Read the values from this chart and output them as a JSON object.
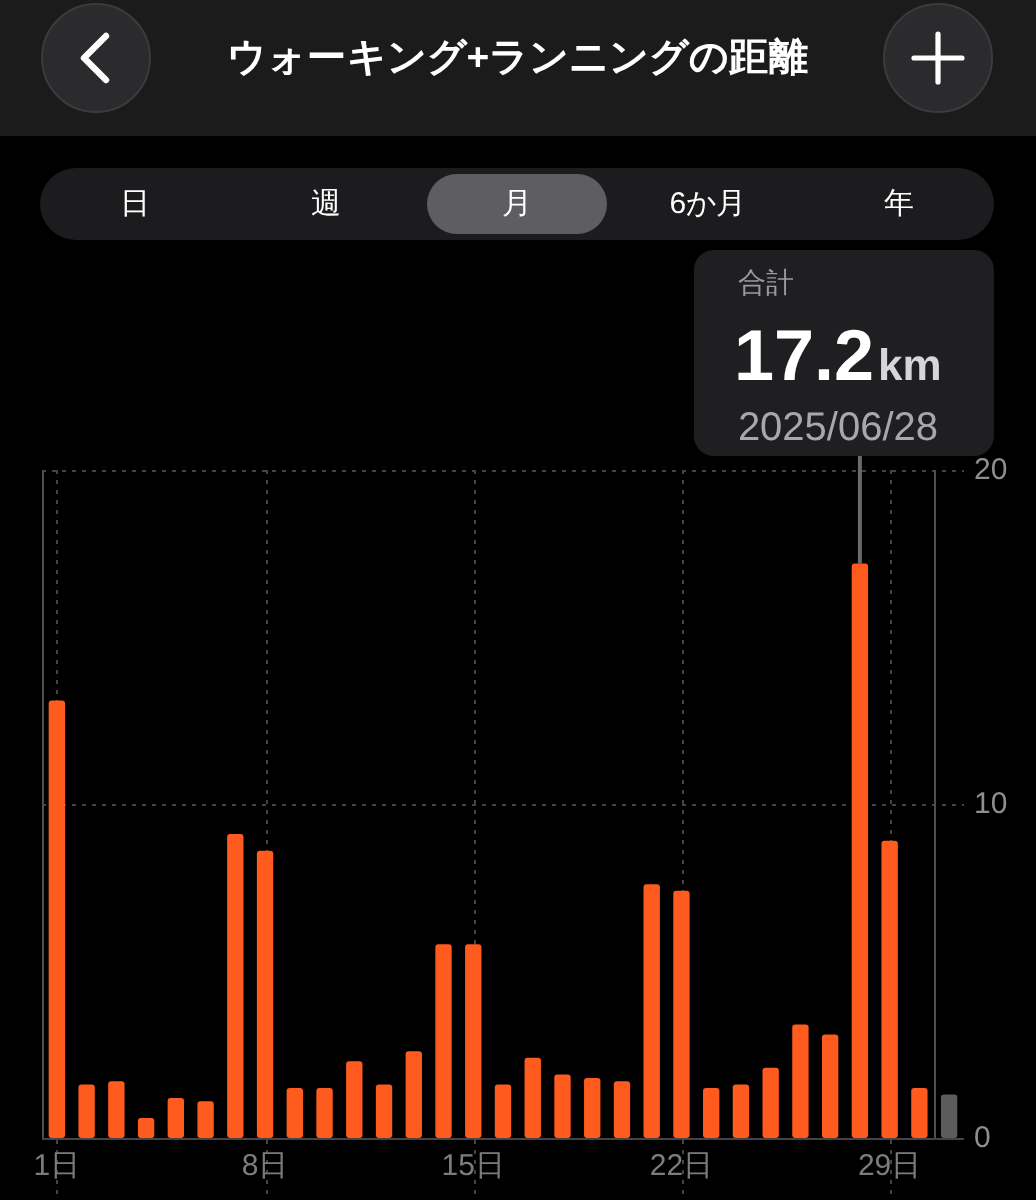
{
  "chart_data": {
    "type": "bar",
    "title": "ウォーキング+ランニングの距離",
    "x": [
      1,
      2,
      3,
      4,
      5,
      6,
      7,
      8,
      9,
      10,
      11,
      12,
      13,
      14,
      15,
      16,
      17,
      18,
      19,
      20,
      21,
      22,
      23,
      24,
      25,
      26,
      27,
      28,
      29,
      30,
      31
    ],
    "values": [
      13.1,
      1.6,
      1.7,
      0.6,
      1.2,
      1.1,
      9.1,
      8.6,
      1.5,
      1.5,
      2.3,
      1.6,
      2.6,
      5.8,
      5.8,
      1.6,
      2.4,
      1.9,
      1.8,
      1.7,
      7.6,
      7.4,
      1.5,
      1.6,
      2.1,
      3.4,
      3.1,
      17.2,
      8.9,
      1.5,
      1.3
    ],
    "colors": [
      "#ff5b1f",
      "#ff5b1f",
      "#ff5b1f",
      "#ff5b1f",
      "#ff5b1f",
      "#ff5b1f",
      "#ff5b1f",
      "#ff5b1f",
      "#ff5b1f",
      "#ff5b1f",
      "#ff5b1f",
      "#ff5b1f",
      "#ff5b1f",
      "#ff5b1f",
      "#ff5b1f",
      "#ff5b1f",
      "#ff5b1f",
      "#ff5b1f",
      "#ff5b1f",
      "#ff5b1f",
      "#ff5b1f",
      "#ff5b1f",
      "#ff5b1f",
      "#ff5b1f",
      "#ff5b1f",
      "#ff5b1f",
      "#ff5b1f",
      "#ff5b1f",
      "#ff5b1f",
      "#ff5b1f",
      "#5c5c5c"
    ],
    "xlim": [
      0.5,
      31.5
    ],
    "xticks": [
      {
        "value": 0.5,
        "label": null
      },
      {
        "value": 1,
        "label": "1日"
      },
      {
        "value": 8,
        "label": "8日"
      },
      {
        "value": 15,
        "label": "15日"
      },
      {
        "value": 22,
        "label": "22日"
      },
      {
        "value": 29,
        "label": "29日"
      },
      {
        "value": 30.5,
        "label": null
      }
    ],
    "ylim": [
      0,
      20
    ],
    "yticks": [
      0,
      10,
      20
    ],
    "grid": true,
    "annotations": [
      "日",
      "週",
      "月",
      "6か月",
      "年",
      "合計",
      {
        "text": "17.2km",
        "x": 28,
        "y": 17.2
      },
      "2025/06/28"
    ]
  }
}
